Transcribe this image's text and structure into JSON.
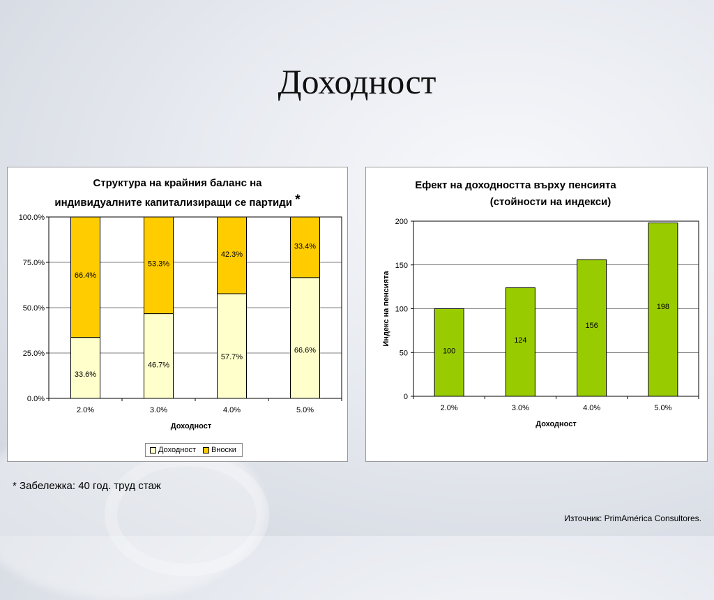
{
  "slide": {
    "title": "Доходност",
    "footnote": "* Забележка: 40 год. труд стаж",
    "source": "Източник: PrimAmérica Consultores."
  },
  "colors": {
    "yield_fill": "#ffffcc",
    "contrib_fill": "#ffcc00",
    "green_fill": "#99cc00",
    "grid": "#000000"
  },
  "chart_data": [
    {
      "type": "bar",
      "stacked": "percent",
      "title_line1": "Структура на крайния баланс на",
      "title_line2": "индивидуалните капитализиращи се партиди",
      "title_mark": "*",
      "xlabel": "Доходност",
      "ylabel": "",
      "categories": [
        "2.0%",
        "3.0%",
        "4.0%",
        "5.0%"
      ],
      "ylim": [
        0,
        100
      ],
      "yticks": [
        "0.0%",
        "25.0%",
        "50.0%",
        "75.0%",
        "100.0%"
      ],
      "series": [
        {
          "name": "Доходност",
          "values": [
            33.6,
            46.7,
            57.7,
            66.6
          ],
          "labels": [
            "33.6%",
            "46.7%",
            "57.7%",
            "66.6%"
          ],
          "color": "#ffffcc"
        },
        {
          "name": "Вноски",
          "values": [
            66.4,
            53.3,
            42.3,
            33.4
          ],
          "labels": [
            "66.4%",
            "53.3%",
            "42.3%",
            "33.4%"
          ],
          "color": "#ffcc00"
        }
      ],
      "grid": true,
      "legend": "bottom"
    },
    {
      "type": "bar",
      "title_line1": "Ефект на доходността върху пенсията",
      "title_line2": "(стойности на индекси)",
      "xlabel": "Доходност",
      "ylabel": "Индекс на пенсията",
      "categories": [
        "2.0%",
        "3.0%",
        "4.0%",
        "5.0%"
      ],
      "values": [
        100,
        124,
        156,
        198
      ],
      "labels": [
        "100",
        "124",
        "156",
        "198"
      ],
      "ylim": [
        0,
        200
      ],
      "yticks": [
        "0",
        "50",
        "100",
        "150",
        "200"
      ],
      "grid": true,
      "color": "#99cc00"
    }
  ]
}
